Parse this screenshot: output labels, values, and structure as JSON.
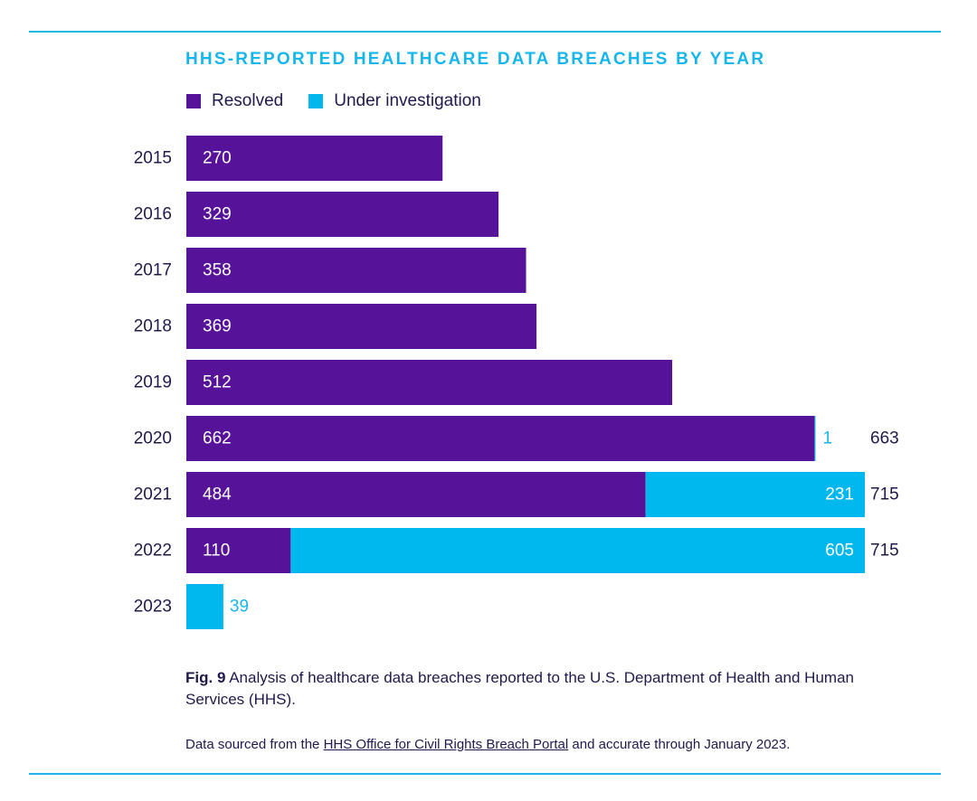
{
  "header": {
    "title": "HHS-REPORTED HEALTHCARE DATA BREACHES BY YEAR"
  },
  "colors": {
    "resolved": "#561298",
    "investigation": "#00b8ee",
    "text": "#1f1a4d",
    "rule": "#1ab7ea"
  },
  "legend": {
    "resolved_label": "Resolved",
    "investigation_label": "Under investigation"
  },
  "chart_data": {
    "type": "bar",
    "orientation": "horizontal",
    "stacked": true,
    "title": "HHS-REPORTED HEALTHCARE DATA BREACHES BY YEAR",
    "xlabel": "",
    "ylabel": "",
    "xlim": [
      0,
      715
    ],
    "grid": false,
    "legend_position": "top-left",
    "categories": [
      "2015",
      "2016",
      "2017",
      "2018",
      "2019",
      "2020",
      "2021",
      "2022",
      "2023"
    ],
    "series": [
      {
        "name": "Resolved",
        "values": [
          270,
          329,
          358,
          369,
          512,
          662,
          484,
          110,
          0
        ]
      },
      {
        "name": "Under investigation",
        "values": [
          0,
          0,
          0,
          0,
          0,
          1,
          231,
          605,
          39
        ]
      }
    ],
    "totals": [
      null,
      null,
      null,
      null,
      null,
      663,
      715,
      715,
      null
    ]
  },
  "caption": {
    "fig_label": "Fig. 9",
    "text": " Analysis of healthcare data breaches reported to the U.S. Department of Health and Human Services (HHS)."
  },
  "source": {
    "prefix": "Data sourced from the ",
    "link_text": "HHS Office for Civil Rights Breach Portal",
    "suffix": " and accurate through January 2023."
  }
}
